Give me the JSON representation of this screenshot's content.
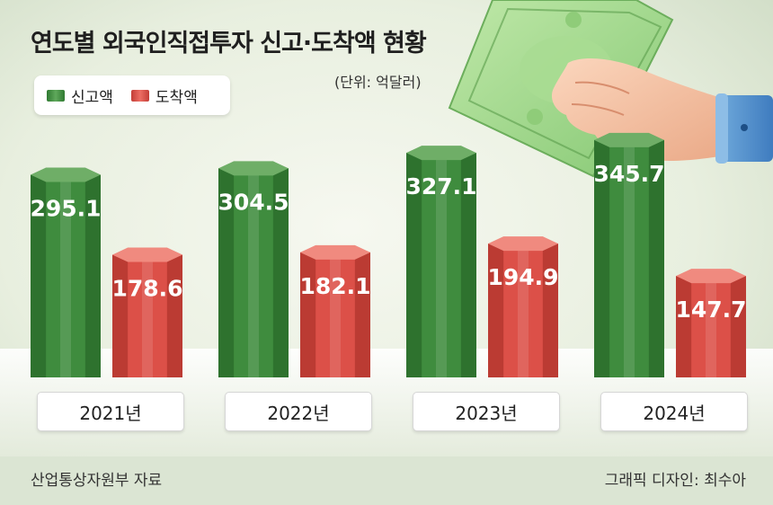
{
  "title": "연도별 외국인직접투자 신고·도착액 현황",
  "unit_label": "(단위: 억달러)",
  "legend": [
    {
      "label": "신고액",
      "color": "#3f8c3e"
    },
    {
      "label": "도착액",
      "color": "#dc5048"
    }
  ],
  "years": [
    "2021년",
    "2022년",
    "2023년",
    "2024년"
  ],
  "source": "산업통상자원부 자료",
  "credit": "그래픽 디자인: 최수아",
  "colors": {
    "green_face": "#3f8c3e",
    "green_side": "#2b6d2c",
    "green_top": "#6fae67",
    "red_face": "#dc5048",
    "red_side": "#b53730",
    "red_top": "#f08a7f"
  },
  "chart_data": {
    "type": "bar",
    "title": "연도별 외국인직접투자 신고·도착액 현황",
    "unit": "억달러",
    "categories": [
      "2021년",
      "2022년",
      "2023년",
      "2024년"
    ],
    "series": [
      {
        "name": "신고액",
        "values": [
          295.1,
          304.5,
          327.1,
          345.7
        ],
        "labels": [
          "295.1",
          "304.5",
          "327.1",
          "345.7"
        ]
      },
      {
        "name": "도착액",
        "values": [
          178.6,
          182.1,
          194.9,
          147.7
        ],
        "labels": [
          "178.6",
          "182.1",
          "194.9",
          "147.7"
        ]
      }
    ],
    "ylim": [
      0,
      400
    ],
    "legend_position": "top-left",
    "grid": false
  }
}
